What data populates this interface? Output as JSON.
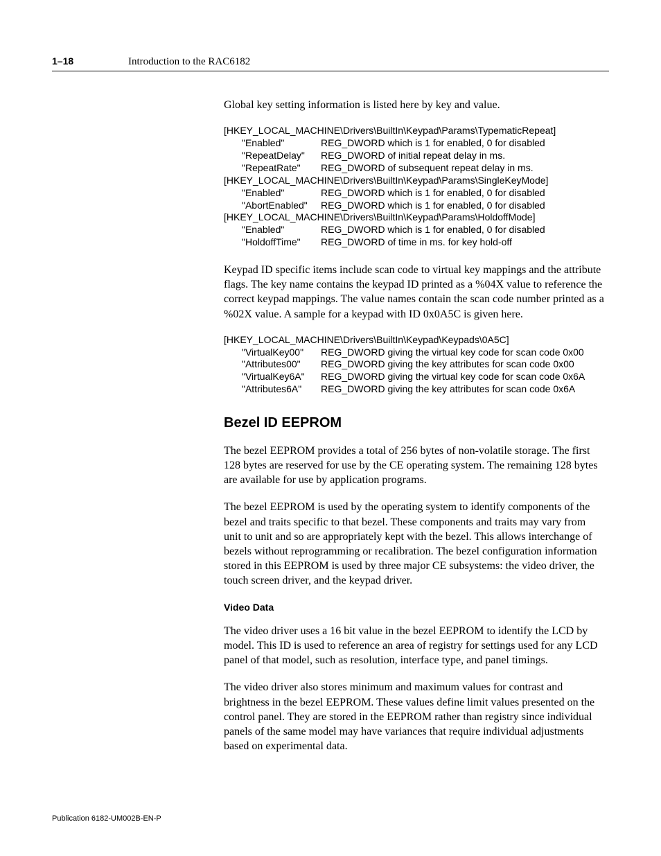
{
  "header": {
    "page_number": "1–18",
    "title": "Introduction to the RAC6182"
  },
  "intro_para": "Global key setting information is listed here by key and value.",
  "reg_block_1": {
    "groups": [
      {
        "key": "[HKEY_LOCAL_MACHINE\\Drivers\\BuiltIn\\Keypad\\Params\\TypematicRepeat]",
        "entries": [
          {
            "name": "\"Enabled\"",
            "desc": "REG_DWORD which is 1 for enabled, 0 for disabled"
          },
          {
            "name": "\"RepeatDelay\"",
            "desc": "REG_DWORD of initial repeat delay in ms."
          },
          {
            "name": "\"RepeatRate\"",
            "desc": "REG_DWORD of subsequent repeat delay in ms."
          }
        ]
      },
      {
        "key": "[HKEY_LOCAL_MACHINE\\Drivers\\BuiltIn\\Keypad\\Params\\SingleKeyMode]",
        "entries": [
          {
            "name": "\"Enabled\"",
            "desc": "REG_DWORD which is 1 for enabled, 0 for disabled"
          },
          {
            "name": "\"AbortEnabled\"",
            "desc": "REG_DWORD which is 1 for enabled, 0 for disabled"
          }
        ]
      },
      {
        "key": "[HKEY_LOCAL_MACHINE\\Drivers\\BuiltIn\\Keypad\\Params\\HoldoffMode]",
        "entries": [
          {
            "name": "\"Enabled\"",
            "desc": "REG_DWORD which is 1 for enabled, 0 for disabled"
          },
          {
            "name": "\"HoldoffTime\"",
            "desc": "REG_DWORD of time in ms. for key hold-off"
          }
        ]
      }
    ]
  },
  "keypad_para": "Keypad ID specific items include scan code to virtual key mappings and the attribute flags.  The key name contains the keypad ID printed as a %04X value to reference the correct keypad mappings.  The value names contain the scan code number printed as a %02X value.  A sample for a keypad with ID 0x0A5C is given here.",
  "reg_block_2": {
    "groups": [
      {
        "key": "[HKEY_LOCAL_MACHINE\\Drivers\\BuiltIn\\Keypad\\Keypads\\0A5C]",
        "entries": [
          {
            "name": "\"VirtualKey00\"",
            "desc": "REG_DWORD giving the virtual key code for scan code 0x00"
          },
          {
            "name": "\"Attributes00\"",
            "desc": "REG_DWORD giving the key attributes for scan code 0x00"
          },
          {
            "name": "\"VirtualKey6A\"",
            "desc": "REG_DWORD giving the virtual key code for scan code 0x6A"
          },
          {
            "name": "\"Attributes6A\"",
            "desc": "REG_DWORD giving the key attributes for scan code 0x6A"
          }
        ]
      }
    ]
  },
  "bezel": {
    "heading": "Bezel ID EEPROM",
    "para1": "The bezel EEPROM provides a total of 256 bytes of non-volatile storage. The first 128 bytes are reserved for use by the CE operating system.  The remaining 128 bytes are available for use by application programs.",
    "para2": "The bezel EEPROM is used by the operating system to identify components of the bezel and traits specific to that bezel.  These components and traits may vary from unit to unit and so are appropriately kept with the bezel.  This allows interchange of bezels without reprogramming or recalibration.  The bezel configuration information stored in this EEPROM is used by three major CE subsystems: the video driver, the touch screen driver, and the keypad driver.",
    "sub_heading": "Video Data",
    "para3": "The video driver uses a 16 bit value in the bezel EEPROM to identify the LCD by model.  This ID is used to reference an area of registry for settings used for any LCD panel of that model, such as resolution, interface type, and panel timings.",
    "para4": "The video driver also stores minimum and maximum values for contrast and brightness in the bezel EEPROM.  These values define limit values presented on the control panel.  They are stored in the EEPROM rather than registry since individual panels of the same model may have variances that require individual adjustments based on experimental data."
  },
  "footer": "Publication 6182-UM002B-EN-P"
}
